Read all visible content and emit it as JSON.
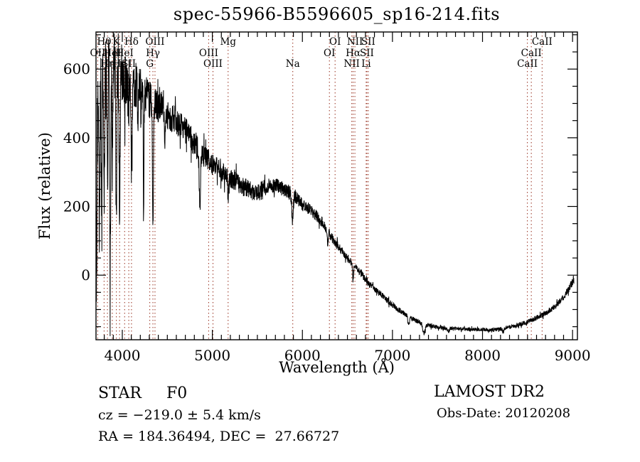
{
  "title": "spec-55966-B5596605_sp16-214.fits",
  "footer": {
    "class_label": "STAR     F0",
    "cz_label": "cz = −219.0 ± 5.4 km/s",
    "radec_label": "RA = 184.36494, DEC =  27.66727",
    "survey": "LAMOST DR2",
    "obs_date": "Obs-Date: 20120208"
  },
  "chart_data": {
    "type": "line",
    "title": "spec-55966-B5596605_sp16-214.fits",
    "xlabel": "Wavelength (Å)",
    "ylabel": "Flux (relative)",
    "x_range": [
      3708,
      9054
    ],
    "y_range": [
      -188,
      708
    ],
    "x_ticks": [
      4000,
      5000,
      6000,
      7000,
      8000,
      9000
    ],
    "y_ticks": [
      0,
      200,
      400,
      600
    ],
    "x_minor_step": 100,
    "y_minor_step": 50,
    "grid": false,
    "legend": "none",
    "line_color": "#000000",
    "line_marker_color": "#993322",
    "spectral_lines": [
      {
        "label": "OII",
        "wavelength": 3727,
        "row": 2
      },
      {
        "label": "Hθ",
        "wavelength": 3798,
        "row": 1
      },
      {
        "label": "Hη",
        "wavelength": 3835,
        "row": 3
      },
      {
        "label": "HeI",
        "wavelength": 3889,
        "row": 2
      },
      {
        "label": "K",
        "wavelength": 3934,
        "row": 1
      },
      {
        "label": "Hε",
        "wavelength": 3970,
        "row": 3
      },
      {
        "label": "HeI",
        "wavelength": 4026,
        "row": 2
      },
      {
        "label": "SII",
        "wavelength": 4072,
        "row": 3
      },
      {
        "label": "Hδ",
        "wavelength": 4102,
        "row": 1
      },
      {
        "label": "G",
        "wavelength": 4305,
        "row": 3
      },
      {
        "label": "Hγ",
        "wavelength": 4340,
        "row": 2
      },
      {
        "label": "OIII",
        "wavelength": 4363,
        "row": 1
      },
      {
        "label": "OIII",
        "wavelength": 4959,
        "row": 2
      },
      {
        "label": "OIII",
        "wavelength": 5007,
        "row": 3
      },
      {
        "label": "Mg",
        "wavelength": 5175,
        "row": 1
      },
      {
        "label": "Na",
        "wavelength": 5893,
        "row": 3
      },
      {
        "label": "OI",
        "wavelength": 6300,
        "row": 2
      },
      {
        "label": "OI",
        "wavelength": 6363,
        "row": 1
      },
      {
        "label": "NII",
        "wavelength": 6548,
        "row": 3
      },
      {
        "label": "Hα",
        "wavelength": 6563,
        "row": 2
      },
      {
        "label": "NII",
        "wavelength": 6583,
        "row": 1
      },
      {
        "label": "Li",
        "wavelength": 6708,
        "row": 3
      },
      {
        "label": "SII",
        "wavelength": 6716,
        "row": 2
      },
      {
        "label": "SII",
        "wavelength": 6731,
        "row": 1
      },
      {
        "label": "CaII",
        "wavelength": 8498,
        "row": 3
      },
      {
        "label": "CaII",
        "wavelength": 8542,
        "row": 2
      },
      {
        "label": "CaII",
        "wavelength": 8662,
        "row": 1
      }
    ],
    "spectrum": {
      "seed": 20120208,
      "sample_step_angstrom": 2,
      "envelope": [
        [
          3705,
          340
        ],
        [
          3720,
          420
        ],
        [
          3740,
          470
        ],
        [
          3760,
          505
        ],
        [
          3790,
          545
        ],
        [
          3820,
          575
        ],
        [
          3850,
          600
        ],
        [
          3880,
          615
        ],
        [
          3910,
          620
        ],
        [
          3950,
          620
        ],
        [
          4000,
          600
        ],
        [
          4060,
          575
        ],
        [
          4120,
          560
        ],
        [
          4180,
          548
        ],
        [
          4240,
          532
        ],
        [
          4300,
          512
        ],
        [
          4360,
          498
        ],
        [
          4420,
          488
        ],
        [
          4480,
          470
        ],
        [
          4540,
          462
        ],
        [
          4600,
          448
        ],
        [
          4660,
          430
        ],
        [
          4720,
          412
        ],
        [
          4780,
          392
        ],
        [
          4840,
          372
        ],
        [
          4900,
          352
        ],
        [
          4960,
          335
        ],
        [
          5020,
          318
        ],
        [
          5080,
          305
        ],
        [
          5140,
          295
        ],
        [
          5200,
          285
        ],
        [
          5260,
          272
        ],
        [
          5320,
          262
        ],
        [
          5380,
          252
        ],
        [
          5440,
          245
        ],
        [
          5500,
          243
        ],
        [
          5560,
          252
        ],
        [
          5620,
          260
        ],
        [
          5700,
          262
        ],
        [
          5780,
          252
        ],
        [
          5850,
          242
        ],
        [
          5920,
          230
        ],
        [
          6000,
          205
        ],
        [
          6080,
          192
        ],
        [
          6160,
          172
        ],
        [
          6240,
          148
        ],
        [
          6320,
          112
        ],
        [
          6400,
          82
        ],
        [
          6480,
          55
        ],
        [
          6560,
          32
        ],
        [
          6640,
          8
        ],
        [
          6720,
          -18
        ],
        [
          6800,
          -40
        ],
        [
          6880,
          -58
        ],
        [
          6960,
          -78
        ],
        [
          7040,
          -95
        ],
        [
          7120,
          -110
        ],
        [
          7200,
          -124
        ],
        [
          7280,
          -135
        ],
        [
          7360,
          -143
        ],
        [
          7440,
          -148
        ],
        [
          7520,
          -152
        ],
        [
          7600,
          -154
        ],
        [
          7700,
          -156
        ],
        [
          7800,
          -157
        ],
        [
          7900,
          -158
        ],
        [
          8000,
          -158
        ],
        [
          8100,
          -160
        ],
        [
          8200,
          -157
        ],
        [
          8300,
          -152
        ],
        [
          8400,
          -145
        ],
        [
          8500,
          -136
        ],
        [
          8600,
          -124
        ],
        [
          8700,
          -112
        ],
        [
          8800,
          -92
        ],
        [
          8880,
          -70
        ],
        [
          8940,
          -48
        ],
        [
          8980,
          -30
        ],
        [
          9005,
          -15
        ],
        [
          9015,
          -12
        ]
      ],
      "absorption_dips": [
        [
          3715,
          360,
          5
        ],
        [
          3745,
          330,
          5
        ],
        [
          3771,
          300,
          6
        ],
        [
          3798,
          330,
          7
        ],
        [
          3835,
          320,
          7
        ],
        [
          3866,
          580,
          7
        ],
        [
          3889,
          300,
          7
        ],
        [
          3934,
          480,
          8
        ],
        [
          3970,
          430,
          8
        ],
        [
          4026,
          160,
          7
        ],
        [
          4102,
          240,
          10
        ],
        [
          4172,
          120,
          5
        ],
        [
          4237,
          390,
          5
        ],
        [
          4340,
          400,
          7
        ],
        [
          4472,
          80,
          8
        ],
        [
          4861,
          165,
          10
        ],
        [
          5175,
          55,
          12
        ],
        [
          5890,
          72,
          12
        ],
        [
          6280,
          40,
          8
        ],
        [
          6563,
          35,
          10
        ],
        [
          7180,
          20,
          15
        ],
        [
          7350,
          28,
          18
        ],
        [
          7620,
          12,
          15
        ],
        [
          8230,
          10,
          12
        ]
      ],
      "noise_profile": [
        [
          3705,
          165
        ],
        [
          3760,
          140
        ],
        [
          3820,
          125
        ],
        [
          3900,
          115
        ],
        [
          3960,
          105
        ],
        [
          4020,
          85
        ],
        [
          4100,
          70
        ],
        [
          4200,
          62
        ],
        [
          4300,
          56
        ],
        [
          4400,
          48
        ],
        [
          4500,
          45
        ],
        [
          4650,
          42
        ],
        [
          4800,
          38
        ],
        [
          4950,
          34
        ],
        [
          5100,
          31
        ],
        [
          5250,
          29
        ],
        [
          5400,
          27
        ],
        [
          5550,
          24
        ],
        [
          5700,
          22
        ],
        [
          5850,
          21
        ],
        [
          6000,
          18
        ],
        [
          6150,
          16
        ],
        [
          6300,
          14
        ],
        [
          6450,
          12
        ],
        [
          6600,
          11
        ],
        [
          6750,
          10
        ],
        [
          6900,
          9
        ],
        [
          7050,
          8
        ],
        [
          7200,
          7
        ],
        [
          7400,
          6
        ],
        [
          7700,
          5
        ],
        [
          8000,
          5
        ],
        [
          8300,
          6
        ],
        [
          8600,
          7
        ],
        [
          8800,
          8
        ],
        [
          8950,
          11
        ],
        [
          9015,
          13
        ]
      ]
    }
  }
}
